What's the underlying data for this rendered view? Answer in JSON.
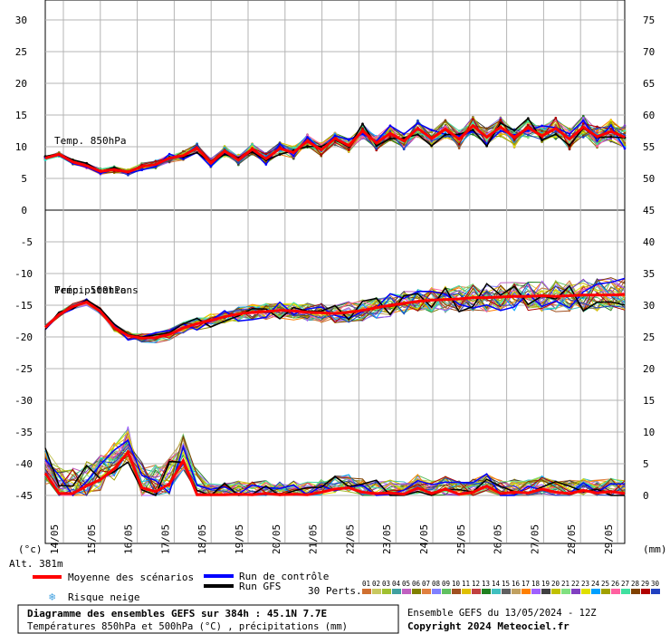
{
  "chart_data": {
    "type": "line",
    "dates": [
      "14/05",
      "15/05",
      "16/05",
      "17/05",
      "18/05",
      "19/05",
      "20/05",
      "21/05",
      "22/05",
      "23/05",
      "24/05",
      "25/05",
      "26/05",
      "27/05",
      "28/05",
      "29/05"
    ],
    "temp850": {
      "label": "Temp. 850hPa",
      "left_axis_ticks": [
        "30",
        "25",
        "20",
        "15",
        "10",
        "5",
        "0"
      ],
      "right_axis_ticks": [
        "75",
        "70",
        "65",
        "60",
        "55",
        "50"
      ],
      "ylim": [
        0,
        33
      ],
      "mean": [
        8.2,
        8.8,
        7.6,
        7.0,
        6.1,
        6.4,
        6.0,
        6.9,
        7.2,
        8.2,
        8.6,
        9.8,
        7.4,
        9.3,
        7.9,
        9.6,
        8.1,
        9.7,
        9.1,
        10.9,
        9.5,
        11.3,
        10.2,
        12.5,
        10.6,
        12.1,
        10.9,
        12.9,
        11.3,
        12.8,
        11.2,
        13.3,
        11.5,
        13.1,
        11.5,
        13.0,
        11.7,
        12.9,
        11.2,
        13.1,
        11.6,
        12.4,
        11.5
      ]
    },
    "temp500": {
      "label": "Temp. 500hPa",
      "left_axis_ticks": [
        "-5",
        "-10",
        "-15",
        "-20",
        "-25",
        "-30",
        "-35",
        "-40",
        "-45"
      ],
      "mean": [
        -18.5,
        -16.5,
        -15.2,
        -14.5,
        -16.0,
        -18.5,
        -19.8,
        -20.2,
        -20.1,
        -19.6,
        -18.6,
        -17.9,
        -17.4,
        -16.8,
        -16.4,
        -16.1,
        -16.0,
        -15.8,
        -15.9,
        -16.1,
        -16.2,
        -16.3,
        -16.1,
        -15.8,
        -15.4,
        -15.0,
        -14.7,
        -14.4,
        -14.2,
        -14.1,
        -14.0,
        -13.8,
        -13.8,
        -13.7,
        -13.6,
        -13.6,
        -13.5,
        -13.6,
        -13.5,
        -13.4,
        -13.4,
        -13.4,
        -13.3
      ]
    },
    "precip": {
      "label": "Précipitations",
      "right_axis_ticks": [
        "45",
        "40",
        "35",
        "30",
        "25",
        "20",
        "15",
        "10",
        "5",
        "0"
      ],
      "unit": "(mm)",
      "mean": [
        3.5,
        0.3,
        0.3,
        1.5,
        2.5,
        4.2,
        6.8,
        1.2,
        0.6,
        1.8,
        5.5,
        0.1,
        0.1,
        0.1,
        0.2,
        0.1,
        0.3,
        0.1,
        0.2,
        0.1,
        0.5,
        1.0,
        1.2,
        0.5,
        0.3,
        0.4,
        0.2,
        1.2,
        0.3,
        1.0,
        0.2,
        0.5,
        1.5,
        0.3,
        0.5,
        0.4,
        1.0,
        0.5,
        0.3,
        0.8,
        0.4,
        0.6,
        0.3
      ]
    },
    "members": 30
  },
  "labels": {
    "unit_c": "(°c)",
    "unit_mm": "(mm)",
    "alt": "Alt. 381m",
    "legend_mean": "Moyenne des scénarios",
    "legend_control": "Run de contrôle",
    "legend_gfs": "Run GFS",
    "legend_snow": "Risque neige",
    "perts": "30 Perts.",
    "pert_numbers": [
      "01",
      "02",
      "03",
      "04",
      "05",
      "06",
      "07",
      "08",
      "09",
      "10",
      "11",
      "12",
      "13",
      "14",
      "15",
      "16",
      "17",
      "18",
      "19",
      "20",
      "21",
      "22",
      "23",
      "24",
      "25",
      "26",
      "27",
      "28",
      "29",
      "30"
    ],
    "pert_colors": [
      "#d07030",
      "#c8c860",
      "#a0c030",
      "#40a0a0",
      "#c060c0",
      "#808000",
      "#e08040",
      "#8080ff",
      "#60c060",
      "#a05020",
      "#e0c000",
      "#c04040",
      "#208020",
      "#40c0c0",
      "#606060",
      "#c0a060",
      "#ff8000",
      "#a060ff",
      "#404040",
      "#c0c000",
      "#80e080",
      "#8040c0",
      "#e0e000",
      "#00a0ff",
      "#a0a000",
      "#ff60a0",
      "#40e0a0",
      "#804000",
      "#b00000",
      "#2040c0"
    ],
    "box_title": "Diagramme des ensembles GEFS sur 384h : 45.1N 7.7E",
    "box_sub": "Températures 850hPa et 500hPa (°C) , précipitations (mm)",
    "ensemble": "Ensemble GEFS du 13/05/2024 - 12Z",
    "copyright": "Copyright 2024 Meteociel.fr"
  },
  "colors": {
    "mean": "#ff0000",
    "control": "#0000ff",
    "gfs": "#000000",
    "grid": "#b4b4b4",
    "snow": "#40a0e0"
  }
}
